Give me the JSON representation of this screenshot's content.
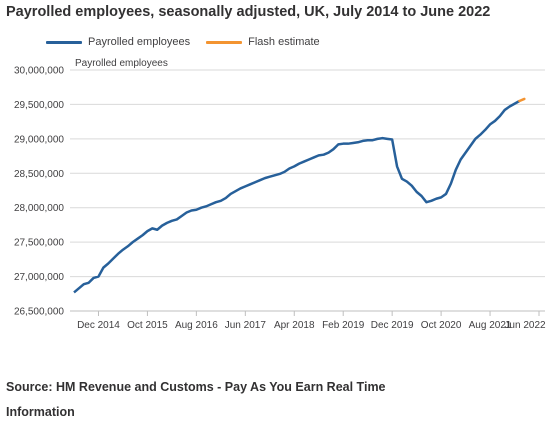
{
  "title": "Payrolled employees, seasonally adjusted, UK, July 2014 to June 2022",
  "legend": {
    "series1": "Payrolled employees",
    "series2": "Flash estimate"
  },
  "source": {
    "line1": "Source: HM Revenue and Customs - Pay As You Earn Real Time",
    "line2": "Information"
  },
  "colors": {
    "series1": "#27609A",
    "series2": "#F39431",
    "grid": "#D9D9D9"
  },
  "chart_data": {
    "type": "line",
    "title": "Payrolled employees, seasonally adjusted, UK, July 2014 to June 2022",
    "ylabel": "Payrolled employees",
    "xlabel": "",
    "ylim": [
      26500000,
      30000000
    ],
    "y_ticks": [
      26500000,
      27000000,
      27500000,
      28000000,
      28500000,
      29000000,
      29500000,
      30000000
    ],
    "y_tick_labels": [
      "26,500,000",
      "27,000,000",
      "27,500,000",
      "28,000,000",
      "28,500,000",
      "29,000,000",
      "29,500,000",
      "30,000,000"
    ],
    "x_start": "Jul 2014",
    "x_tick_labels": [
      "Dec 2014",
      "Oct 2015",
      "Aug 2016",
      "Jun 2017",
      "Apr 2018",
      "Feb 2019",
      "Dec 2019",
      "Oct 2020",
      "Aug 2021",
      "Jun 2022"
    ],
    "series": [
      {
        "name": "Payrolled employees",
        "values": [
          26770000,
          26830000,
          26890000,
          26910000,
          26980000,
          27000000,
          27130000,
          27190000,
          27260000,
          27330000,
          27390000,
          27440000,
          27500000,
          27550000,
          27600000,
          27660000,
          27700000,
          27680000,
          27740000,
          27780000,
          27810000,
          27830000,
          27880000,
          27930000,
          27960000,
          27970000,
          28000000,
          28020000,
          28050000,
          28080000,
          28100000,
          28140000,
          28200000,
          28240000,
          28280000,
          28310000,
          28340000,
          28370000,
          28400000,
          28430000,
          28450000,
          28470000,
          28490000,
          28520000,
          28570000,
          28600000,
          28640000,
          28670000,
          28700000,
          28730000,
          28760000,
          28770000,
          28800000,
          28850000,
          28920000,
          28930000,
          28930000,
          28940000,
          28950000,
          28970000,
          28980000,
          28980000,
          29000000,
          29010000,
          29000000,
          28990000,
          28600000,
          28420000,
          28380000,
          28320000,
          28230000,
          28170000,
          28080000,
          28100000,
          28130000,
          28150000,
          28200000,
          28350000,
          28550000,
          28700000,
          28800000,
          28900000,
          29000000,
          29060000,
          29130000,
          29210000,
          29260000,
          29330000,
          29420000,
          29470000,
          29510000,
          29550000
        ]
      },
      {
        "name": "Flash estimate",
        "values": [
          29550000,
          29580000
        ]
      }
    ]
  }
}
